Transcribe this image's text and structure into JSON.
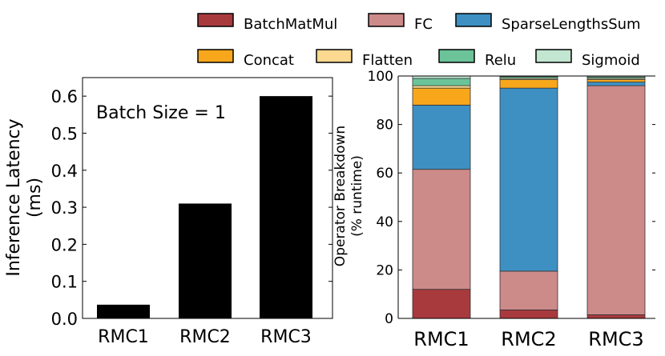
{
  "chart_data": [
    {
      "type": "bar",
      "title": "",
      "annotation": "Batch Size = 1",
      "categories": [
        "RMC1",
        "RMC2",
        "RMC3"
      ],
      "values": [
        0.037,
        0.31,
        0.6
      ],
      "ylabel": "Inference Latency\n(ms)",
      "xlabel": "",
      "ylim": [
        0,
        0.65
      ],
      "yticks": [
        "0.0",
        "0.1",
        "0.2",
        "0.3",
        "0.4",
        "0.5",
        "0.6"
      ],
      "bar_color": "#000000"
    },
    {
      "type": "bar",
      "stacked": true,
      "title": "",
      "categories": [
        "RMC1",
        "RMC2",
        "RMC3"
      ],
      "ylabel": "Operator Breakdown\n(% runtime)",
      "xlabel": "",
      "ylim": [
        0,
        100
      ],
      "yticks": [
        "0",
        "20",
        "40",
        "60",
        "80",
        "100"
      ],
      "legend_position": "top",
      "series": [
        {
          "name": "BatchMatMul",
          "color": "#a83a3e",
          "values": [
            12,
            3.5,
            1.5
          ]
        },
        {
          "name": "FC",
          "color": "#cc8a89",
          "values": [
            49.5,
            16,
            94.5
          ]
        },
        {
          "name": "SparseLengthsSum",
          "color": "#3e90c3",
          "values": [
            26.5,
            75.5,
            1.5
          ]
        },
        {
          "name": "Concat",
          "color": "#f8a71b",
          "values": [
            7,
            3.5,
            1
          ]
        },
        {
          "name": "Flatten",
          "color": "#fbd990",
          "values": [
            1,
            0.5,
            0.5
          ]
        },
        {
          "name": "Relu",
          "color": "#6cc39a",
          "values": [
            3,
            0.7,
            0.6
          ]
        },
        {
          "name": "Sigmoid",
          "color": "#c3e6d2",
          "values": [
            1,
            0.3,
            0.4
          ]
        }
      ]
    }
  ]
}
